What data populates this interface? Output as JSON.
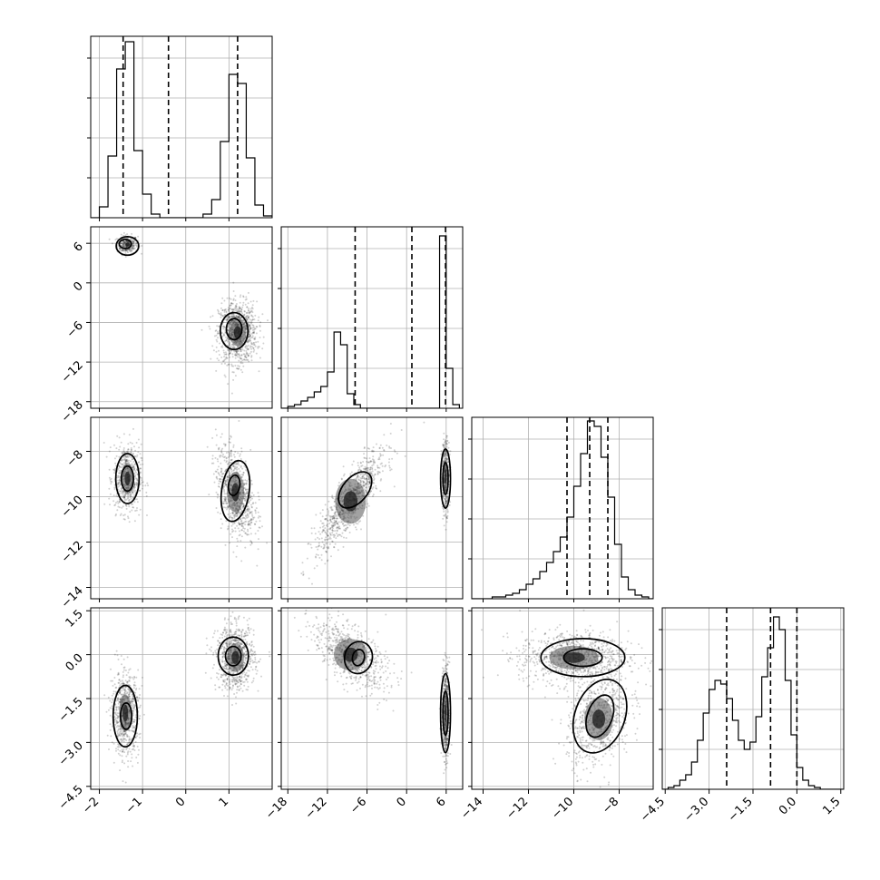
{
  "chart_data": {
    "type": "corner",
    "parameters": [
      {
        "id": "p1",
        "lim": [
          -2.2,
          2.0
        ],
        "ticks": [
          -2,
          -1,
          0,
          1
        ],
        "tick_labels": [
          "−2",
          "−1",
          "0",
          "1"
        ]
      },
      {
        "id": "p2",
        "lim": [
          -19.0,
          8.5
        ],
        "ticks": [
          -18,
          -12,
          -6,
          0,
          6
        ],
        "tick_labels": [
          "−18",
          "−12",
          "−6",
          "0",
          "6"
        ]
      },
      {
        "id": "p3",
        "lim": [
          -14.5,
          -6.5
        ],
        "ticks": [
          -14,
          -12,
          -10,
          -8
        ],
        "tick_labels": [
          "−14",
          "−12",
          "−10",
          "−8"
        ]
      },
      {
        "id": "p4",
        "lim": [
          -4.6,
          1.6
        ],
        "ticks": [
          -4.5,
          -3.0,
          -1.5,
          0.0,
          1.5
        ],
        "tick_labels": [
          "−4.5",
          "−3.0",
          "−1.5",
          "0.0",
          "1.5"
        ]
      }
    ],
    "quantiles": [
      [
        -1.45,
        -0.4,
        1.2
      ],
      [
        -7.8,
        0.8,
        5.9
      ],
      [
        -10.3,
        -9.3,
        -8.5
      ],
      [
        -2.4,
        -0.9,
        0.0
      ]
    ],
    "histograms": [
      {
        "edges": [
          -2.2,
          -2.0,
          -1.8,
          -1.6,
          -1.4,
          -1.2,
          -1.0,
          -0.8,
          -0.6,
          -0.4,
          -0.2,
          0.0,
          0.2,
          0.4,
          0.6,
          0.8,
          1.0,
          1.2,
          1.4,
          1.6,
          1.8,
          2.0
        ],
        "counts": [
          0,
          0.06,
          0.34,
          0.82,
          0.97,
          0.37,
          0.13,
          0.02,
          0,
          0,
          0,
          0,
          0,
          0.02,
          0.1,
          0.42,
          0.79,
          0.74,
          0.33,
          0.07,
          0.01
        ]
      },
      {
        "edges": [
          -19,
          -18,
          -17,
          -16,
          -15,
          -14,
          -13,
          -12,
          -11,
          -10,
          -9,
          -8,
          -7,
          -6,
          -5,
          -4,
          -3,
          -2,
          -1,
          0,
          1,
          2,
          3,
          4,
          5,
          6,
          7,
          8
        ],
        "counts": [
          0,
          0.01,
          0.02,
          0.04,
          0.06,
          0.09,
          0.12,
          0.2,
          0.42,
          0.35,
          0.08,
          0.02,
          0,
          0,
          0,
          0,
          0,
          0,
          0,
          0,
          0,
          0,
          0,
          0,
          0.95,
          0.22,
          0.02
        ]
      },
      {
        "edges": [
          -14.5,
          -14.2,
          -13.9,
          -13.6,
          -13.3,
          -13.0,
          -12.7,
          -12.4,
          -12.1,
          -11.8,
          -11.5,
          -11.2,
          -10.9,
          -10.6,
          -10.3,
          -10.0,
          -9.7,
          -9.4,
          -9.1,
          -8.8,
          -8.5,
          -8.2,
          -7.9,
          -7.6,
          -7.3,
          -7.0,
          -6.7,
          -6.5
        ],
        "counts": [
          0,
          0,
          0,
          0.01,
          0.01,
          0.02,
          0.03,
          0.05,
          0.08,
          0.11,
          0.15,
          0.2,
          0.26,
          0.34,
          0.45,
          0.62,
          0.8,
          0.98,
          0.95,
          0.78,
          0.56,
          0.3,
          0.12,
          0.05,
          0.02,
          0.01,
          0
        ]
      },
      {
        "edges": [
          -4.6,
          -4.4,
          -4.2,
          -4.0,
          -3.8,
          -3.6,
          -3.4,
          -3.2,
          -3.0,
          -2.8,
          -2.6,
          -2.4,
          -2.2,
          -2.0,
          -1.8,
          -1.6,
          -1.4,
          -1.2,
          -1.0,
          -0.8,
          -0.6,
          -0.4,
          -0.2,
          0.0,
          0.2,
          0.4,
          0.6,
          0.8,
          1.0,
          1.2,
          1.4,
          1.6
        ],
        "counts": [
          0,
          0.01,
          0.02,
          0.05,
          0.08,
          0.15,
          0.27,
          0.42,
          0.55,
          0.6,
          0.58,
          0.5,
          0.38,
          0.27,
          0.22,
          0.26,
          0.4,
          0.62,
          0.78,
          0.95,
          0.88,
          0.6,
          0.3,
          0.12,
          0.05,
          0.02,
          0.01,
          0,
          0,
          0,
          0
        ]
      }
    ],
    "pairs": [
      {
        "row": 1,
        "col": 0,
        "clusters": [
          {
            "cx": -1.35,
            "cy": 5.8,
            "sx": 0.12,
            "sy": 0.7,
            "r": 0,
            "n": 260
          },
          {
            "cx": 1.2,
            "cy": -7.5,
            "sx": 0.22,
            "sy": 2.3,
            "r": 0,
            "n": 1000
          }
        ],
        "contours": [
          {
            "cx": -1.35,
            "cy": 5.6,
            "rx": 0.26,
            "ry": 1.4,
            "rot": 0
          },
          {
            "cx": -1.4,
            "cy": 5.9,
            "rx": 0.14,
            "ry": 0.7,
            "rot": 0
          },
          {
            "cx": 1.12,
            "cy": -7.3,
            "rx": 0.32,
            "ry": 2.8,
            "rot": 0
          },
          {
            "cx": 1.12,
            "cy": -7.0,
            "rx": 0.18,
            "ry": 1.6,
            "rot": 0
          }
        ]
      },
      {
        "row": 2,
        "col": 0,
        "clusters": [
          {
            "cx": -1.35,
            "cy": -9.2,
            "sx": 0.16,
            "sy": 0.75,
            "r": 0,
            "n": 600
          },
          {
            "cx": 1.15,
            "cy": -9.8,
            "sx": 0.22,
            "sy": 1.0,
            "r": -0.4,
            "n": 800
          }
        ],
        "contours": [
          {
            "cx": -1.35,
            "cy": -9.2,
            "rx": 0.27,
            "ry": 1.1,
            "rot": 0
          },
          {
            "cx": -1.35,
            "cy": -9.2,
            "rx": 0.14,
            "ry": 0.55,
            "rot": 0
          },
          {
            "cx": 1.15,
            "cy": -9.75,
            "rx": 0.32,
            "ry": 1.35,
            "rot": 8
          },
          {
            "cx": 1.12,
            "cy": -9.5,
            "rx": 0.13,
            "ry": 0.45,
            "rot": 8
          }
        ]
      },
      {
        "row": 2,
        "col": 1,
        "clusters": [
          {
            "cx": -8.5,
            "cy": -10.2,
            "sx": 2.6,
            "sy": 1.1,
            "r": 0.85,
            "n": 900
          },
          {
            "cx": 5.9,
            "cy": -9.1,
            "sx": 0.3,
            "sy": 0.8,
            "r": 0,
            "n": 400
          }
        ],
        "contours": [
          {
            "cx": -7.8,
            "cy": -9.7,
            "rx": 3.2,
            "ry": 0.55,
            "rot": -50
          },
          {
            "cx": 5.9,
            "cy": -9.2,
            "rx": 0.75,
            "ry": 1.3,
            "rot": 0
          },
          {
            "cx": 5.9,
            "cy": -9.2,
            "rx": 0.4,
            "ry": 0.7,
            "rot": 0
          }
        ]
      },
      {
        "row": 3,
        "col": 0,
        "clusters": [
          {
            "cx": -1.4,
            "cy": -2.0,
            "sx": 0.16,
            "sy": 0.7,
            "r": 0,
            "n": 700
          },
          {
            "cx": 1.15,
            "cy": -0.1,
            "sx": 0.22,
            "sy": 0.55,
            "r": 0,
            "n": 800
          }
        ],
        "contours": [
          {
            "cx": -1.4,
            "cy": -2.1,
            "rx": 0.28,
            "ry": 1.05,
            "rot": 0
          },
          {
            "cx": -1.38,
            "cy": -2.1,
            "rx": 0.13,
            "ry": 0.45,
            "rot": 0
          },
          {
            "cx": 1.1,
            "cy": -0.05,
            "rx": 0.35,
            "ry": 0.65,
            "rot": 0
          },
          {
            "cx": 1.1,
            "cy": -0.05,
            "rx": 0.18,
            "ry": 0.33,
            "rot": 0
          }
        ]
      },
      {
        "row": 3,
        "col": 1,
        "clusters": [
          {
            "cx": -8.5,
            "cy": 0.0,
            "sx": 2.8,
            "sy": 0.6,
            "r": -0.6,
            "n": 700
          },
          {
            "cx": 5.9,
            "cy": -2.0,
            "sx": 0.3,
            "sy": 0.8,
            "r": 0,
            "n": 500
          }
        ],
        "contours": [
          {
            "cx": -7.3,
            "cy": -0.1,
            "rx": 2.1,
            "ry": 0.55,
            "rot": 12
          },
          {
            "cx": -7.3,
            "cy": -0.1,
            "rx": 0.9,
            "ry": 0.28,
            "rot": 12
          },
          {
            "cx": 5.9,
            "cy": -2.0,
            "rx": 0.75,
            "ry": 1.35,
            "rot": 0
          },
          {
            "cx": 5.9,
            "cy": -2.0,
            "rx": 0.4,
            "ry": 0.75,
            "rot": 0
          }
        ]
      },
      {
        "row": 3,
        "col": 2,
        "clusters": [
          {
            "cx": -10.0,
            "cy": -0.1,
            "sx": 1.2,
            "sy": 0.45,
            "r": 0,
            "n": 900
          },
          {
            "cx": -8.9,
            "cy": -2.2,
            "sx": 0.7,
            "sy": 0.8,
            "r": 0.3,
            "n": 700
          }
        ],
        "contours": [
          {
            "cx": -9.6,
            "cy": -0.1,
            "rx": 1.85,
            "ry": 0.65,
            "rot": 0
          },
          {
            "cx": -9.6,
            "cy": -0.1,
            "rx": 0.85,
            "ry": 0.3,
            "rot": 0
          },
          {
            "cx": -8.85,
            "cy": -2.1,
            "rx": 1.1,
            "ry": 1.3,
            "rot": 20
          },
          {
            "cx": -8.85,
            "cy": -2.1,
            "rx": 0.55,
            "ry": 0.75,
            "rot": 20
          }
        ]
      }
    ]
  }
}
